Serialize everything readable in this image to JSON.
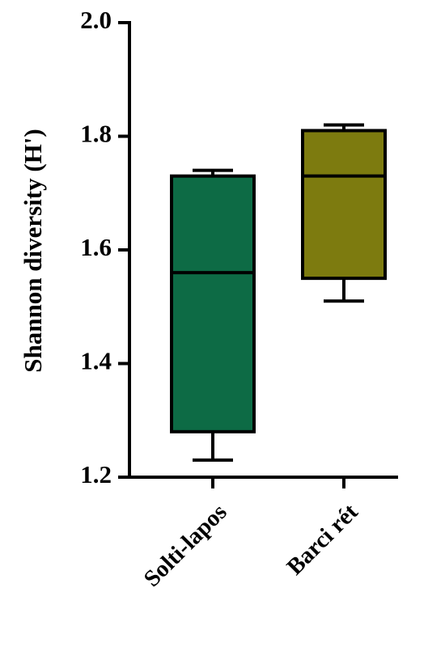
{
  "chart_data": {
    "type": "box",
    "y_label": "Shannon diversity (H')",
    "categories": [
      "Solti-lapos",
      "Barci rét"
    ],
    "colors": [
      "#0d6b45",
      "#7d7b0f"
    ],
    "min": [
      1.23,
      1.51
    ],
    "q1": [
      1.28,
      1.55
    ],
    "median": [
      1.56,
      1.73
    ],
    "q3": [
      1.73,
      1.81
    ],
    "max": [
      1.74,
      1.82
    ],
    "ylim": [
      1.2,
      2.0
    ],
    "yticks": [
      1.2,
      1.4,
      1.6,
      1.8,
      {
        "value": 2.0,
        "label": "2.0"
      }
    ]
  }
}
